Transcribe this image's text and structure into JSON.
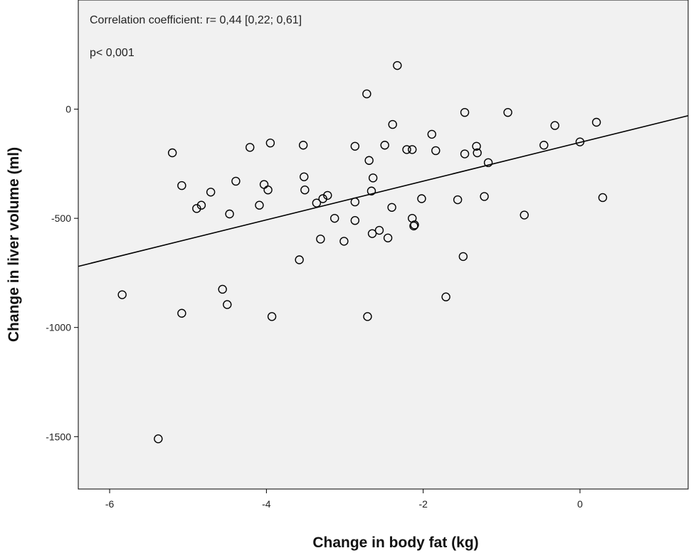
{
  "chart_data": {
    "type": "scatter",
    "title": "",
    "xlabel": "Change in body fat (kg)",
    "ylabel": "Change in liver volume (ml)",
    "xlim": [
      -6.4,
      1.38
    ],
    "ylim": [
      -1740,
      500
    ],
    "xticks": [
      -6,
      -4,
      -2,
      0
    ],
    "yticks": [
      0,
      -500,
      -1000,
      -1500
    ],
    "tick_labels": {
      "x": [
        "-6",
        "-4",
        "-2",
        "0"
      ],
      "y": [
        "0",
        "-500",
        "-1000",
        "-1500"
      ]
    },
    "annotations": [
      "Correlation coefficient: r= 0,44 [0,22; 0,61]",
      "p< 0,001"
    ],
    "grid": false,
    "legend": "none",
    "plot_background": "#f1f1f1",
    "marker_color": "#000000",
    "fit_line": {
      "x": [
        -6.4,
        1.38
      ],
      "y": [
        -720,
        -30
      ]
    },
    "points": [
      {
        "x": -5.84,
        "y": -850
      },
      {
        "x": -5.38,
        "y": -1510
      },
      {
        "x": -5.2,
        "y": -200
      },
      {
        "x": -5.08,
        "y": -350
      },
      {
        "x": -5.08,
        "y": -935
      },
      {
        "x": -4.89,
        "y": -455
      },
      {
        "x": -4.83,
        "y": -440
      },
      {
        "x": -4.71,
        "y": -380
      },
      {
        "x": -4.56,
        "y": -825
      },
      {
        "x": -4.5,
        "y": -895
      },
      {
        "x": -4.47,
        "y": -480
      },
      {
        "x": -4.39,
        "y": -330
      },
      {
        "x": -4.21,
        "y": -175
      },
      {
        "x": -4.09,
        "y": -440
      },
      {
        "x": -4.03,
        "y": -345
      },
      {
        "x": -3.98,
        "y": -370
      },
      {
        "x": -3.95,
        "y": -155
      },
      {
        "x": -3.93,
        "y": -950
      },
      {
        "x": -3.58,
        "y": -690
      },
      {
        "x": -3.53,
        "y": -165
      },
      {
        "x": -3.52,
        "y": -310
      },
      {
        "x": -3.51,
        "y": -370
      },
      {
        "x": -3.36,
        "y": -430
      },
      {
        "x": -3.31,
        "y": -595
      },
      {
        "x": -3.28,
        "y": -410
      },
      {
        "x": -3.22,
        "y": -395
      },
      {
        "x": -3.13,
        "y": -500
      },
      {
        "x": -3.01,
        "y": -605
      },
      {
        "x": -2.87,
        "y": -170
      },
      {
        "x": -2.87,
        "y": -425
      },
      {
        "x": -2.87,
        "y": -510
      },
      {
        "x": -2.72,
        "y": 70
      },
      {
        "x": -2.71,
        "y": -950
      },
      {
        "x": -2.69,
        "y": -235
      },
      {
        "x": -2.66,
        "y": -375
      },
      {
        "x": -2.64,
        "y": -315
      },
      {
        "x": -2.65,
        "y": -570
      },
      {
        "x": -2.56,
        "y": -555
      },
      {
        "x": -2.49,
        "y": -165
      },
      {
        "x": -2.45,
        "y": -590
      },
      {
        "x": -2.4,
        "y": -450
      },
      {
        "x": -2.39,
        "y": -70
      },
      {
        "x": -2.33,
        "y": 200
      },
      {
        "x": -2.21,
        "y": -185
      },
      {
        "x": -2.14,
        "y": -185
      },
      {
        "x": -2.14,
        "y": -500
      },
      {
        "x": -2.12,
        "y": -535
      },
      {
        "x": -2.11,
        "y": -530
      },
      {
        "x": -2.02,
        "y": -410
      },
      {
        "x": -1.89,
        "y": -115
      },
      {
        "x": -1.84,
        "y": -190
      },
      {
        "x": -1.71,
        "y": -860
      },
      {
        "x": -1.56,
        "y": -415
      },
      {
        "x": -1.49,
        "y": -675
      },
      {
        "x": -1.47,
        "y": -15
      },
      {
        "x": -1.47,
        "y": -205
      },
      {
        "x": -1.32,
        "y": -170
      },
      {
        "x": -1.31,
        "y": -200
      },
      {
        "x": -1.22,
        "y": -400
      },
      {
        "x": -1.17,
        "y": -245
      },
      {
        "x": -0.92,
        "y": -15
      },
      {
        "x": -0.71,
        "y": -485
      },
      {
        "x": -0.46,
        "y": -165
      },
      {
        "x": -0.32,
        "y": -75
      },
      {
        "x": 0.0,
        "y": -150
      },
      {
        "x": 0.21,
        "y": -60
      },
      {
        "x": 0.29,
        "y": -405
      }
    ]
  }
}
